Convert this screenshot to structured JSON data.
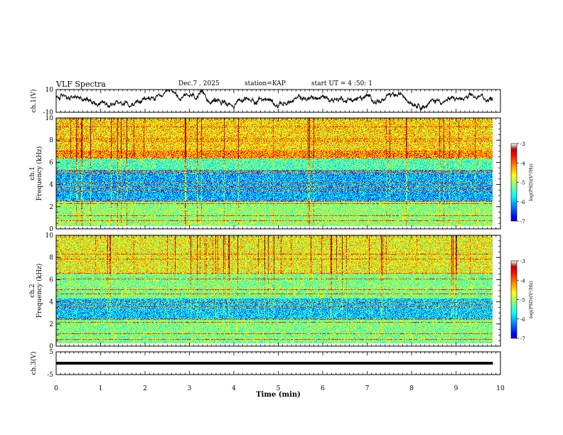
{
  "header": {
    "title": "VLF Spectra",
    "date": "Dec.7 , 2025",
    "station": "station=KAP",
    "start": "start UT = 4 :50: 1"
  },
  "chart_data": [
    {
      "type": "line",
      "name": "ch1-waveform",
      "ylabel": "ch.1(V)",
      "ylim": [
        -10,
        10
      ],
      "yticks": [
        "10",
        "-10"
      ],
      "xlim": [
        0,
        9.83
      ],
      "series": [
        {
          "name": "ch.1",
          "baseline": 0,
          "amplitude": 5
        }
      ]
    },
    {
      "type": "heatmap",
      "name": "ch1-spectrogram",
      "ylabel": "ch.1\nFrequency (kHz)",
      "ylabel_line1": "ch.1",
      "ylabel_line2": "Frequency (kHz)",
      "ylim": [
        0,
        10
      ],
      "yticks": [
        "0",
        "2",
        "4",
        "6",
        "8",
        "10"
      ],
      "colorbar": {
        "label": "log(PSD)(V²/Hz)",
        "min": -7,
        "max": -3,
        "ticks": [
          "-3",
          "-4",
          "-5",
          "-6",
          "-7"
        ]
      }
    },
    {
      "type": "heatmap",
      "name": "ch2-spectrogram",
      "ylabel": "ch.2\nFrequency (kHz)",
      "ylabel_line1": "ch.2",
      "ylabel_line2": "Frequency (kHz)",
      "ylim": [
        0,
        10
      ],
      "yticks": [
        "0",
        "2",
        "4",
        "6",
        "8",
        "10"
      ],
      "colorbar": {
        "label": "log(PSD)(V²/Hz)",
        "min": -7,
        "max": -3,
        "ticks": [
          "-3",
          "-4",
          "-5",
          "-6",
          "-7"
        ]
      }
    },
    {
      "type": "line",
      "name": "ch3-waveform",
      "ylabel": "ch.3(V)",
      "ylim": [
        -5,
        5
      ],
      "yticks": [
        "5",
        "-5"
      ],
      "series": [
        {
          "name": "ch.3",
          "baseline": 0,
          "band": [
            -0.6,
            0.6
          ]
        }
      ]
    }
  ],
  "xaxis": {
    "label": "Time (min)",
    "range": [
      0,
      10
    ],
    "ticks": [
      "0",
      "1",
      "2",
      "3",
      "4",
      "5",
      "6",
      "7",
      "8",
      "9",
      "10"
    ],
    "data_end": 9.83
  }
}
